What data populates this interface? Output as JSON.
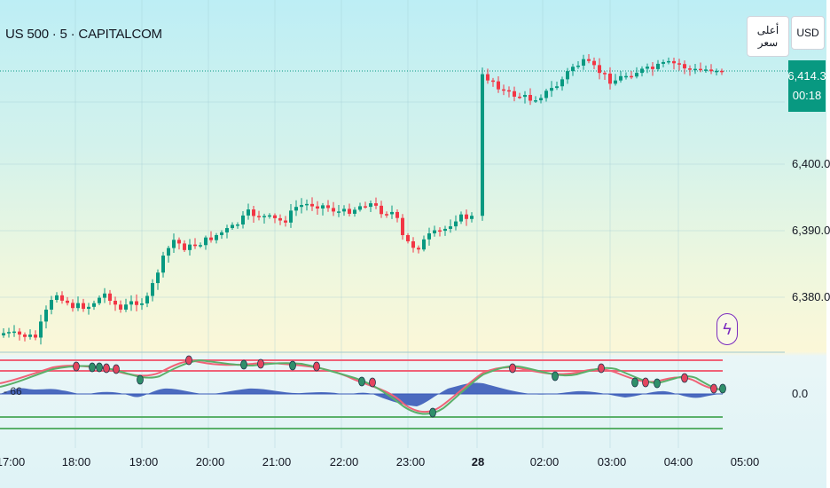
{
  "symbol": "US 500 · 5 · CAPITALCOM",
  "indicator_label": "- 66",
  "buttons": {
    "high_label": "أعلى سعر",
    "usd_label": "USD"
  },
  "current_price": {
    "value": "6,414.3",
    "countdown": "00:18",
    "color": "#089981"
  },
  "price_axis": [
    "6,400.0",
    "6,390.0",
    "6,380.0"
  ],
  "indicator_axis": "0.0",
  "time_axis": [
    "17:00",
    "18:00",
    "19:00",
    "20:00",
    "21:00",
    "22:00",
    "23:00",
    "28",
    "02:00",
    "03:00",
    "04:00",
    "05:00"
  ],
  "alert_icon": "lightning-icon",
  "colors": {
    "up": "#089981",
    "down": "#f23645",
    "histogram": "#3a5bb8",
    "band_red": "#f06277",
    "band_green": "#5bb06a"
  }
}
